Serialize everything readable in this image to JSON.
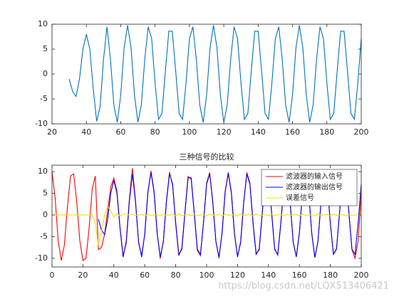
{
  "chart_data": [
    {
      "type": "line",
      "x": [
        30,
        32,
        34,
        36,
        38,
        40,
        42,
        44,
        46,
        48,
        50,
        52,
        54,
        56,
        58,
        60,
        62,
        64,
        66,
        68,
        70,
        72,
        74,
        76,
        78,
        80,
        82,
        84,
        86,
        88,
        90,
        92,
        94,
        96,
        98,
        100,
        102,
        104,
        106,
        108,
        110,
        112,
        114,
        116,
        118,
        120,
        122,
        124,
        126,
        128,
        130,
        132,
        134,
        136,
        138,
        140,
        142,
        144,
        146,
        148,
        150,
        152,
        154,
        156,
        158,
        160,
        162,
        164,
        166,
        168,
        170,
        172,
        174,
        176,
        178,
        180,
        182,
        184,
        186,
        188,
        190,
        192,
        194,
        196,
        198,
        200
      ],
      "series": [
        {
          "color": "#0072bd",
          "values": [
            -1,
            -3.5,
            -4.5,
            -1,
            5,
            8,
            5,
            -3,
            -9.5,
            -6.5,
            3,
            9.5,
            3.0,
            -6.2,
            -9.7,
            -4.2,
            5.3,
            9.8,
            5.3,
            -4.2,
            -9.7,
            -6.2,
            3.0,
            9.5,
            7.1,
            -1.8,
            -9.1,
            -7.9,
            0.6,
            8.6,
            8.6,
            0.6,
            -7.9,
            -9.1,
            -1.8,
            7.1,
            9.5,
            3.0,
            -6.2,
            -9.7,
            -4.2,
            5.3,
            9.8,
            5.3,
            -4.2,
            -9.7,
            -6.2,
            3.0,
            9.5,
            7.1,
            -1.8,
            -9.1,
            -7.9,
            0.6,
            8.6,
            8.6,
            0.6,
            -7.9,
            -9.1,
            -1.8,
            7.1,
            9.5,
            3.0,
            -6.2,
            -9.7,
            -4.2,
            5.3,
            9.8,
            5.3,
            -4.2,
            -9.7,
            -6.2,
            3.0,
            9.5,
            7.1,
            -1.8,
            -9.1,
            -7.9,
            0.6,
            8.6,
            8.6,
            0.6,
            -7.9,
            -9.1,
            -1.8,
            7.1
          ]
        }
      ],
      "xlim": [
        20,
        200
      ],
      "xticks": [
        20,
        40,
        60,
        80,
        100,
        120,
        140,
        160,
        180,
        200
      ],
      "ylim": [
        -10,
        10
      ],
      "yticks": [
        -10,
        -5,
        0,
        5,
        10
      ]
    },
    {
      "type": "line",
      "title": "三种信号的比较",
      "legend": "northeast",
      "x": [
        0,
        2,
        4,
        6,
        8,
        10,
        12,
        14,
        16,
        18,
        20,
        22,
        24,
        26,
        28,
        30,
        32,
        34,
        36,
        38,
        40,
        42,
        44,
        46,
        48,
        50,
        52,
        54,
        56,
        58,
        60,
        62,
        64,
        66,
        68,
        70,
        72,
        74,
        76,
        78,
        80,
        82,
        84,
        86,
        88,
        90,
        92,
        94,
        96,
        98,
        100,
        102,
        104,
        106,
        108,
        110,
        112,
        114,
        116,
        118,
        120,
        122,
        124,
        126,
        128,
        130,
        132,
        134,
        136,
        138,
        140,
        142,
        144,
        146,
        148,
        150,
        152,
        154,
        156,
        158,
        160,
        162,
        164,
        166,
        168,
        170,
        172,
        174,
        176,
        178,
        180,
        182,
        184,
        186,
        188,
        190,
        192,
        194,
        196,
        198,
        200
      ],
      "series": [
        {
          "name": "滤波器的输入信号",
          "color": "#ff0000",
          "values": [
            10,
            4,
            -6,
            -10.5,
            -7,
            2,
            9,
            9.5,
            3,
            -6,
            -10.5,
            -10,
            -3,
            6,
            9,
            -8,
            -7.5,
            -4.5,
            1,
            6.5,
            8.5,
            5.5,
            -3,
            -9.8,
            -6,
            3.5,
            10.8,
            3.4,
            -6.5,
            -9.3,
            -4.5,
            5.0,
            10.2,
            5.6,
            -4.0,
            -10.1,
            -6.0,
            3.3,
            9.9,
            6.8,
            -2.1,
            -9.4,
            -7.6,
            0.9,
            8.9,
            8.3,
            0.3,
            -8.2,
            -9.4,
            -1.5,
            7.4,
            9.8,
            2.7,
            -6.0,
            -10.0,
            -3.9,
            5.6,
            9.5,
            5.0,
            -4.4,
            -9.5,
            -6.5,
            2.8,
            9.8,
            7.4,
            -1.6,
            -8.8,
            -8.1,
            0.4,
            8.4,
            8.9,
            0.8,
            -7.7,
            -9.3,
            -2.0,
            6.9,
            9.2,
            3.2,
            -6.4,
            -9.5,
            -4.0,
            5.2,
            10.1,
            5.4,
            -4.3,
            -9.9,
            -6.1,
            3.1,
            9.6,
            7.0,
            -1.9,
            -9.0,
            -7.8,
            0.7,
            8.7,
            8.5,
            0.5,
            -8.0,
            -10.0,
            -6,
            5
          ]
        },
        {
          "name": "滤波器的输出信号",
          "color": "#0000ff",
          "values": [
            null,
            null,
            null,
            null,
            null,
            null,
            null,
            null,
            null,
            null,
            null,
            null,
            null,
            null,
            null,
            -1,
            -3.5,
            -4.5,
            -1,
            5,
            8,
            5,
            -3,
            -9.5,
            -6.5,
            3,
            9.5,
            3.0,
            -6.2,
            -9.7,
            -4.2,
            5.3,
            9.8,
            5.3,
            -4.2,
            -9.7,
            -6.2,
            3.0,
            9.5,
            7.1,
            -1.8,
            -9.1,
            -7.9,
            0.6,
            8.6,
            8.6,
            0.6,
            -7.9,
            -9.1,
            -1.8,
            7.1,
            9.5,
            3.0,
            -6.2,
            -9.7,
            -4.2,
            5.3,
            9.8,
            5.3,
            -4.2,
            -9.7,
            -6.2,
            3.0,
            9.5,
            7.1,
            -1.8,
            -9.1,
            -7.9,
            0.6,
            8.6,
            8.6,
            0.6,
            -7.9,
            -9.1,
            -1.8,
            7.1,
            9.5,
            3.0,
            -6.2,
            -9.7,
            -4.2,
            5.3,
            9.8,
            5.3,
            -4.2,
            -9.7,
            -6.2,
            3.0,
            9.5,
            7.1,
            -1.8,
            -9.1,
            -7.9,
            0.6,
            8.6,
            8.6,
            0.6,
            -7.9,
            -9.1,
            -1.8,
            7.1
          ]
        },
        {
          "name": "误差信号",
          "color": "#f5e000",
          "values": [
            0,
            0,
            0,
            0,
            0,
            0,
            0,
            0,
            0,
            0,
            0,
            0,
            0,
            0,
            -2,
            -7,
            -4,
            0,
            2,
            1,
            -0.5,
            0.3,
            -0.2,
            0.1,
            0.2,
            0,
            0.2,
            -0.1,
            0,
            0.1,
            -0.2,
            0.2,
            -0.1,
            0,
            0.1,
            -0.2,
            0.2,
            -0.1,
            0,
            0.1,
            -0.2,
            0.2,
            -0.1,
            0,
            0.1,
            -0.2,
            0.2,
            -0.1,
            0,
            0.1,
            -0.2,
            0.2,
            -0.1,
            0,
            0.1,
            -0.2,
            0.2,
            -0.1,
            0,
            0.1,
            -0.2,
            0.2,
            -0.1,
            0,
            0.1,
            -0.2,
            0.2,
            -0.1,
            0,
            0.1,
            -0.2,
            0.2,
            -0.1,
            0,
            0.1,
            -0.2,
            0.2,
            -0.1,
            0,
            0.1,
            -0.2,
            0.2,
            -0.1,
            0,
            0.1,
            -0.2,
            0.2,
            -0.1,
            0,
            0.1,
            -0.2,
            0.2,
            -0.1,
            0,
            0.1,
            -0.2,
            0.2,
            -0.1,
            0,
            0.1,
            -0.2
          ]
        }
      ],
      "xlim": [
        0,
        200
      ],
      "xticks": [
        0,
        20,
        40,
        60,
        80,
        100,
        120,
        140,
        160,
        180,
        200
      ],
      "ylim": [
        -12,
        11.5
      ],
      "yticks": [
        -10,
        -5,
        0,
        5,
        10
      ]
    }
  ],
  "watermark": "https://blog.csdn.net/LQX513406421"
}
